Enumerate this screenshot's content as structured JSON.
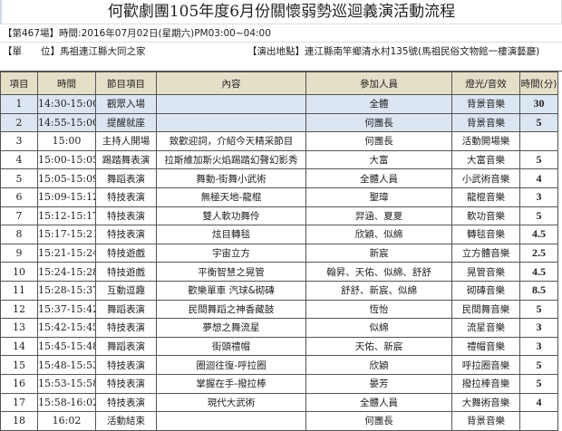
{
  "title": "何歡劇團105年度6月份關懷弱勢巡迴義演活動流程",
  "session": "【第467場】時間:2016年07月02日(星期六)PM03:00~04:00",
  "unit": "【單　　位】馬祖連江縣大同之家",
  "venue": "【演出地點】連江縣南竿鄉清水村135號(馬祖民俗文物館一樓演藝廳)",
  "headers": [
    "項目",
    "時間",
    "節目項目",
    "內容",
    "參加人員",
    "燈光/音效",
    "時間(分)"
  ],
  "rows": [
    [
      "1",
      "14:30-15:00",
      "觀眾入場",
      "",
      "全體",
      "背景音樂",
      "30"
    ],
    [
      "2",
      "14:55-15:00",
      "提醒就座",
      "",
      "何團長",
      "背景音樂",
      "5"
    ],
    [
      "3",
      "15:00",
      "主持人開場",
      "致歡迎詞，介紹今天精采節目",
      "何團長",
      "活動開場樂",
      ""
    ],
    [
      "4",
      "15:00-15:05",
      "踢踏舞表演",
      "拉斯維加斯火焰踢踏幻聲幻影秀",
      "大富",
      "大富音樂",
      "5"
    ],
    [
      "5",
      "15:05-15:09",
      "舞蹈表演",
      "舞動-街舞小武術",
      "全體人員",
      "小武術音樂",
      "4"
    ],
    [
      "6",
      "15:09-15:12",
      "特技表演",
      "無極天地-龍棍",
      "聖瑋",
      "龍棍音樂",
      "3"
    ],
    [
      "7",
      "15:12-15:17",
      "特技表演",
      "雙人軟功舞伶",
      "羿涵、夏夏",
      "軟功音樂",
      "5"
    ],
    [
      "8",
      "15:17-15:21",
      "特技表演",
      "炫目轉毯",
      "欣穎、似綿",
      "轉毯音樂",
      "4.5"
    ],
    [
      "9",
      "15:21-15:24",
      "特技遊戲",
      "宇宙立方",
      "新宸",
      "立方體音樂",
      "2.5"
    ],
    [
      "10",
      "15:24-15:28",
      "特技遊戲",
      "平衡智慧之晃管",
      "翰昇、天佑、似綿、舒舒",
      "晃管音樂",
      "4.5"
    ],
    [
      "11",
      "15:28-15:37",
      "互動逗趣",
      "歡樂單車 汽球&砌磚",
      "舒舒、新宸、似綿",
      "砌磚音樂",
      "8.5"
    ],
    [
      "12",
      "15:37-15:42",
      "舞蹈表演",
      "民間舞蹈之神香藏鼓",
      "恆怡",
      "民間舞音樂",
      "5"
    ],
    [
      "13",
      "15:42-15:45",
      "特技表演",
      "夢想之舞流星",
      "似綿",
      "流星音樂",
      "3"
    ],
    [
      "14",
      "15:45-15:48",
      "舞蹈表演",
      "街頭禮帽",
      "天佑、新宸",
      "禮帽音樂",
      "3"
    ],
    [
      "15",
      "15:48-15:53",
      "特技表演",
      "圈迴往復-呼拉圈",
      "欣穎",
      "呼拉圈音樂",
      "5"
    ],
    [
      "16",
      "15:53-15:58",
      "特技表演",
      "掌握在手-撥拉棒",
      "晏芳",
      "撥拉棒音樂",
      "5"
    ],
    [
      "17",
      "15:58-16:02",
      "特技表演",
      "現代大武術",
      "全體人員",
      "大舞術音樂",
      "4"
    ],
    [
      "18",
      "16:02",
      "活動結束",
      "",
      "何團長",
      "背景音樂",
      ""
    ]
  ],
  "highlight_color": "#dce6f2",
  "header_color": "#e6dfc8"
}
